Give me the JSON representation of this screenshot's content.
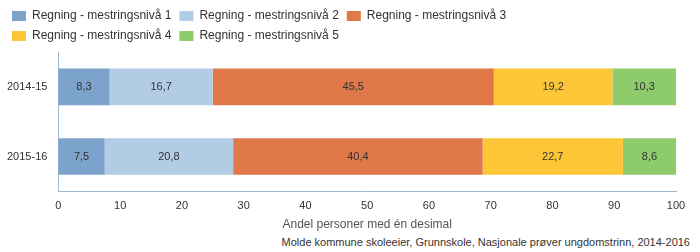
{
  "chart_data": {
    "type": "bar",
    "orientation": "horizontal",
    "stacked": true,
    "categories": [
      "2014-15",
      "2015-16"
    ],
    "series": [
      {
        "name": "Regning - mestringsnivå 1",
        "color": "#7ba3cb",
        "values": [
          8.3,
          7.5
        ],
        "value_labels": [
          "8,3",
          "7,5"
        ]
      },
      {
        "name": "Regning - mestringsnivå 2",
        "color": "#b3cce6",
        "values": [
          16.7,
          20.8
        ],
        "value_labels": [
          "16,7",
          "20,8"
        ]
      },
      {
        "name": "Regning - mestringsnivå 3",
        "color": "#e0784a",
        "values": [
          45.5,
          40.4
        ],
        "value_labels": [
          "45,5",
          "40,4"
        ]
      },
      {
        "name": "Regning - mestringsnivå 4",
        "color": "#fcc637",
        "values": [
          19.2,
          22.7
        ],
        "value_labels": [
          "19,2",
          "22,7"
        ]
      },
      {
        "name": "Regning - mestringsnivå 5",
        "color": "#8ecb6b",
        "values": [
          10.3,
          8.6
        ],
        "value_labels": [
          "10,3",
          "8,6"
        ]
      }
    ],
    "x_label": "Andel personer med én desimal",
    "xlim": [
      0,
      100
    ],
    "xticks": [
      0,
      10,
      20,
      30,
      40,
      50,
      60,
      70,
      80,
      90,
      100
    ],
    "grid": false,
    "legend": "top",
    "data_labels": true,
    "source": "Molde kommune skoleeier, Grunnskole, Nasjonale prøver ungdomstrinn, 2014-2016"
  }
}
